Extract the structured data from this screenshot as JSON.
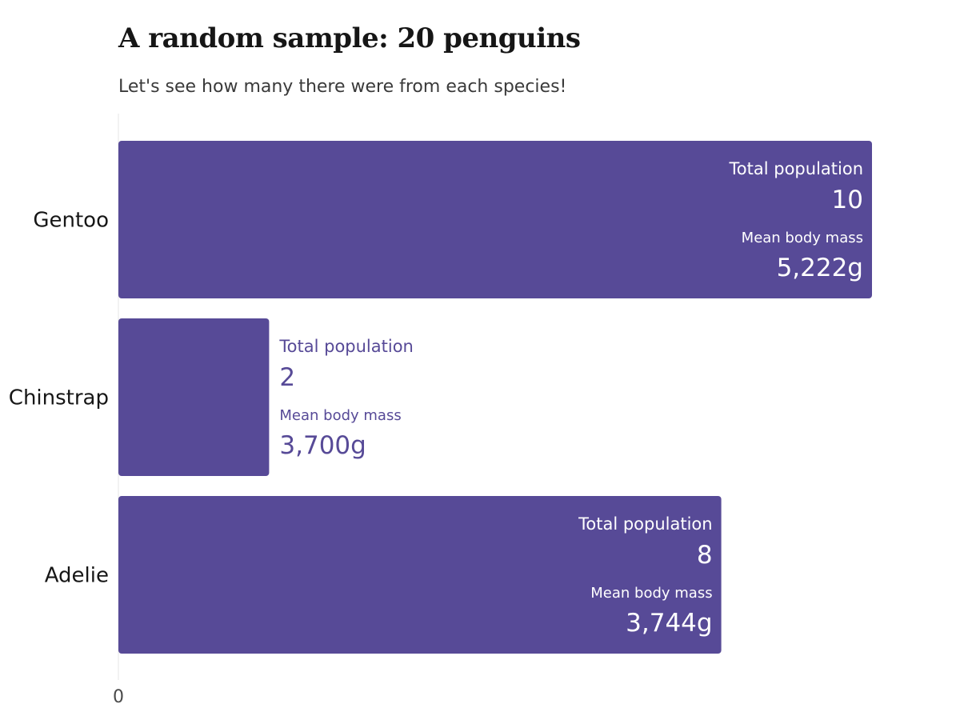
{
  "chart_data": {
    "type": "bar",
    "orientation": "horizontal",
    "title": "A random sample: 20 penguins",
    "subtitle": "Let's see how many there were from each species!",
    "categories": [
      "Gentoo",
      "Chinstrap",
      "Adelie"
    ],
    "values": [
      10,
      2,
      8
    ],
    "population_labels": [
      "10",
      "2",
      "8"
    ],
    "mass_labels": [
      "5,222g",
      "3,700g",
      "3,744g"
    ],
    "label_titles": {
      "population": "Total population",
      "mass": "Mean body mass"
    },
    "x_ticks": [
      {
        "value": 0,
        "label": "0"
      }
    ],
    "xlim": [
      0,
      10
    ],
    "grid": false,
    "legend": "none",
    "colors": {
      "bar": "#574a97",
      "label_inside": "#ffffff",
      "label_outside": "#574a97",
      "axis_line": "#eeeeee"
    }
  }
}
